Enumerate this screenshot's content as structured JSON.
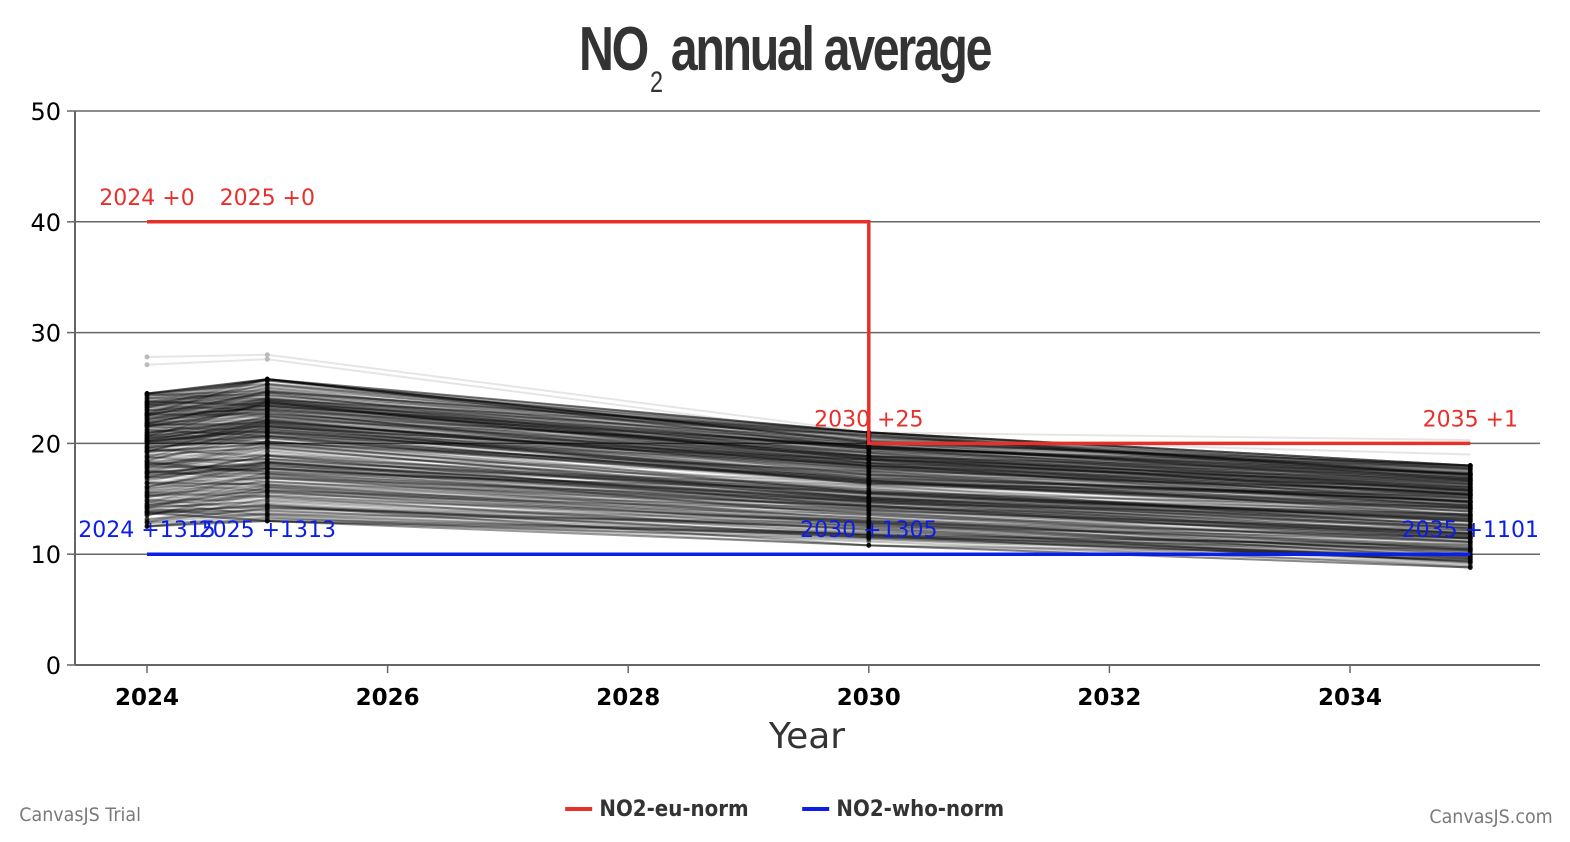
{
  "chart_data": {
    "type": "line",
    "title": "NO",
    "title_subscript": "2",
    "title_rest": "annual average",
    "xlabel": "Year",
    "ylabel": "",
    "xlim": [
      2023.4,
      2035.6
    ],
    "ylim": [
      0,
      50
    ],
    "x_ticks": [
      "2024",
      "2026",
      "2028",
      "2030",
      "2032",
      "2034"
    ],
    "x_tick_values": [
      2024,
      2026,
      2028,
      2030,
      2032,
      2034
    ],
    "y_ticks": [
      "0",
      "10",
      "20",
      "30",
      "40",
      "50"
    ],
    "y_tick_values": [
      0,
      10,
      20,
      30,
      40,
      50
    ],
    "grid": true,
    "legend_position": "bottom",
    "series": [
      {
        "name": "NO2-eu-norm",
        "color": "#e8302a",
        "step": true,
        "x": [
          2024,
          2025,
          2030,
          2035
        ],
        "y": [
          40,
          40,
          20,
          20
        ],
        "labels": [
          "2024 +0",
          "2025 +0",
          "2030 +25",
          "2035 +1"
        ]
      },
      {
        "name": "NO2-who-norm",
        "color": "#0a1ee8",
        "step": false,
        "x": [
          2024,
          2025,
          2030,
          2035
        ],
        "y": [
          10,
          10,
          10,
          10
        ],
        "labels": [
          "2024 +1315",
          "2025 +1313",
          "2030 +1305",
          "2035 +1101"
        ]
      }
    ],
    "background_series": {
      "description_color": "#000000",
      "x": [
        2024,
        2025,
        2030,
        2035
      ],
      "y_range_2024": [
        12.5,
        24.5
      ],
      "y_range_2025": [
        13,
        25.8
      ],
      "y_range_2030": [
        10.8,
        21
      ],
      "y_range_2035": [
        8.8,
        18
      ],
      "outliers_2024": [
        27.8,
        27.1
      ],
      "outliers_2025": [
        28,
        27.6
      ]
    }
  },
  "credits": {
    "left": "CanvasJS Trial",
    "right": "CanvasJS.com"
  }
}
